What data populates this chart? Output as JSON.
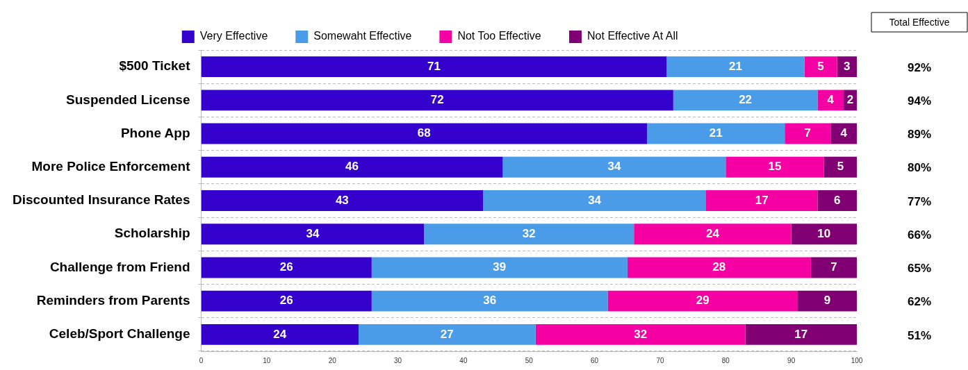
{
  "chart_data": {
    "type": "bar",
    "orientation": "horizontal",
    "stacked": true,
    "categories": [
      "$500 Ticket",
      "Suspended License",
      "Phone App",
      "More Police Enforcement",
      "Discounted Insurance Rates",
      "Scholarship",
      "Challenge from Friend",
      "Reminders from Parents",
      "Celeb/Sport Challenge"
    ],
    "series": [
      {
        "name": "Very Effective",
        "color": "#3300cc",
        "values": [
          71,
          72,
          68,
          46,
          43,
          34,
          26,
          26,
          24
        ]
      },
      {
        "name": "Somewaht Effective",
        "color": "#4a9be8",
        "values": [
          21,
          22,
          21,
          34,
          34,
          32,
          39,
          36,
          27
        ]
      },
      {
        "name": "Not Too Effective",
        "color": "#f500a3",
        "values": [
          5,
          4,
          7,
          15,
          17,
          24,
          28,
          29,
          32
        ]
      },
      {
        "name": "Not Effective At All",
        "color": "#800073",
        "values": [
          3,
          2,
          4,
          5,
          6,
          10,
          7,
          9,
          17
        ]
      }
    ],
    "xlim": [
      0,
      100
    ],
    "xticks": [
      0,
      10,
      20,
      30,
      40,
      50,
      60,
      70,
      80,
      90,
      100
    ],
    "data_labels": true,
    "grid": "y",
    "legend": "top",
    "annotations": [
      "Total Effective",
      "92%",
      "94%",
      "89%",
      "80%",
      "77%",
      "66%",
      "65%",
      "62%",
      "51%"
    ]
  }
}
